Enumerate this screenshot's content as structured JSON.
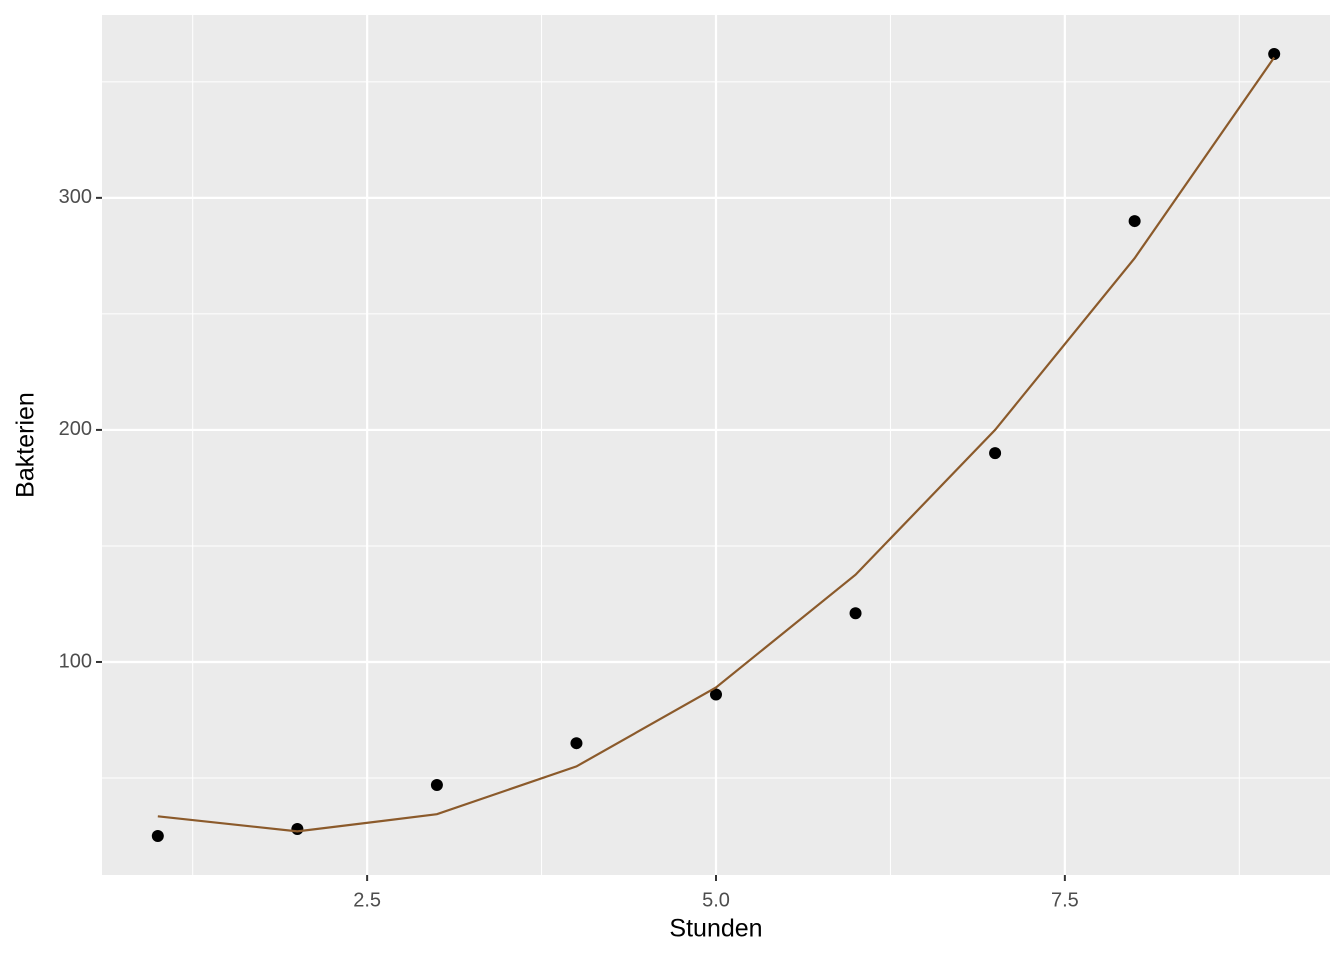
{
  "chart_data": {
    "type": "scatter",
    "x_label": "Stunden",
    "y_label": "Bakterien",
    "x": [
      1,
      2,
      3,
      4,
      5,
      6,
      7,
      8,
      9
    ],
    "series": [
      {
        "type": "scatter",
        "color": "#000000",
        "values": [
          25,
          28,
          47,
          65,
          86,
          121,
          190,
          290,
          362
        ]
      },
      {
        "type": "line",
        "color": "#8b5a2b",
        "values": [
          33.5,
          27,
          34.4,
          55,
          89,
          137.6,
          200,
          274,
          360.5
        ]
      }
    ],
    "xlim": [
      0.6,
      9.4
    ],
    "xticks": [
      2.5,
      5.0,
      7.5
    ],
    "xticks_labels": [
      "2.5",
      "5.0",
      "7.5"
    ],
    "minor_xticks": [
      1.25,
      3.75,
      6.25,
      8.75
    ],
    "ylim": [
      8.2,
      378.8
    ],
    "yticks": [
      100,
      200,
      300
    ],
    "minor_yticks": [
      50,
      150,
      250,
      350
    ],
    "grid": true,
    "background": "#ebebeb"
  }
}
